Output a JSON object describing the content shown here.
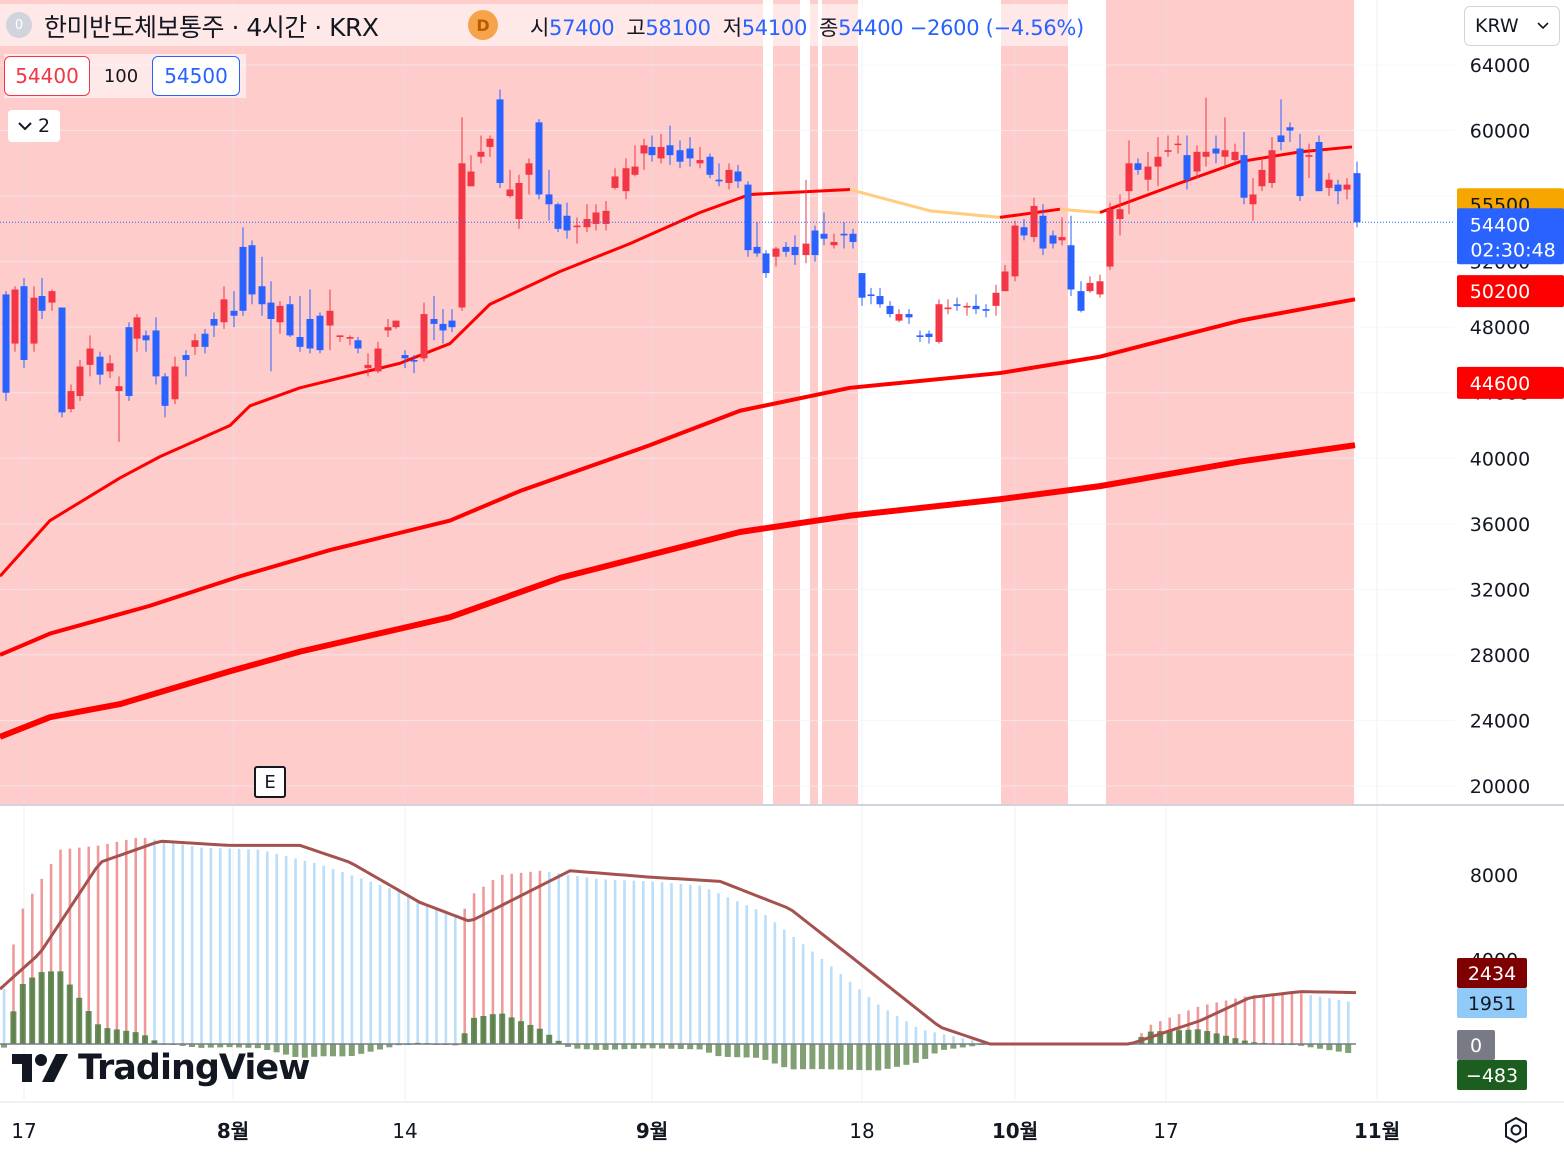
{
  "header": {
    "badge": "0",
    "symbol": "한미반도체보통주 · 4시간 · KRX",
    "data_badge": "D",
    "ohlc": [
      {
        "label": "시",
        "value": "57400"
      },
      {
        "label": "고",
        "value": "58100"
      },
      {
        "label": "저",
        "value": "54100"
      },
      {
        "label": "종",
        "value": "54400 −2600 (−4.56%)"
      }
    ]
  },
  "trade": {
    "sell_price": "54400",
    "quantity": "100",
    "buy_price": "54500"
  },
  "indicators_toggle": {
    "count": "2"
  },
  "currency": {
    "label": "KRW"
  },
  "earnings_marker": {
    "label": "E"
  },
  "logo": {
    "text": "TradingView"
  },
  "colors": {
    "up": "#f23645",
    "down": "#2962ff",
    "ma": "#ff0000",
    "ma_alt": "#ffcc80",
    "bg_up": "#ffcccc",
    "macd": "#a5524f",
    "hist_pos": "#4a7a3e",
    "hist_neg": "#4a7a3e"
  },
  "chart_data": [
    {
      "type": "candlestick",
      "title": "한미반도체보통주 · 4시간 · KRX",
      "y_axis": {
        "min": 20000,
        "max": 64000,
        "ticks": [
          64000,
          60000,
          56000,
          52000,
          48000,
          44000,
          40000,
          36000,
          32000,
          28000,
          24000,
          20000
        ]
      },
      "x_labels": [
        "17",
        "8월",
        "14",
        "9월",
        "18",
        "10월",
        "17",
        "11월"
      ],
      "price_labels": [
        {
          "value": "55500",
          "color": "#f7a600",
          "text_color": "#131722",
          "price": 55500
        },
        {
          "value": "54400",
          "sub": "02:30:48",
          "color": "#2962ff",
          "text_color": "#ffffff",
          "price": 54400
        },
        {
          "value": "50200",
          "color": "#ff0000",
          "text_color": "#ffffff",
          "price": 50200
        },
        {
          "value": "44600",
          "color": "#ff0000",
          "text_color": "#ffffff",
          "price": 44600
        }
      ],
      "ohlc_last": {
        "open": 57400,
        "high": 58100,
        "low": 54100,
        "close": 54400
      }
    },
    {
      "type": "macd",
      "y_axis": {
        "ticks": [
          8000,
          4000
        ]
      },
      "value_labels": [
        {
          "value": "2434",
          "color": "#7f0000"
        },
        {
          "value": "1951",
          "color": "#90caf9"
        },
        {
          "value": "0",
          "color": "#787b86"
        },
        {
          "value": "−483",
          "color": "#1b5e20"
        }
      ]
    }
  ]
}
